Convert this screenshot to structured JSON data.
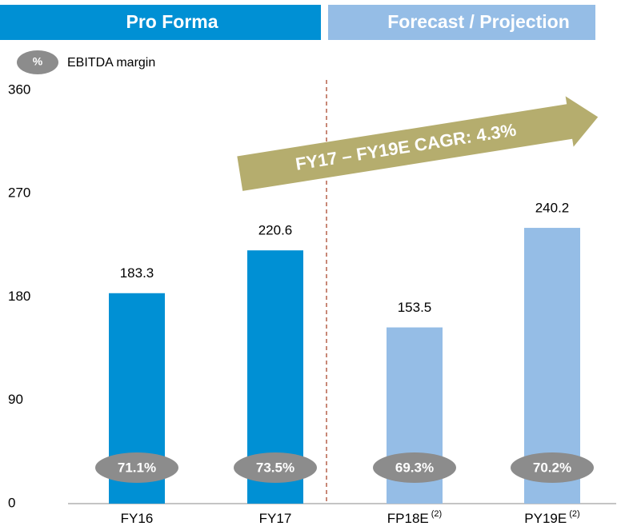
{
  "chart_data": {
    "type": "bar",
    "headers": [
      {
        "text": "Pro Forma",
        "color": "#0090d4"
      },
      {
        "text": "Forecast / Projection",
        "color": "#95bde6"
      }
    ],
    "legend": {
      "symbol": "%",
      "text": "EBITDA margin"
    },
    "annotation": "FY17 – FY19E CAGR: 4.3%",
    "categories": [
      "FY16",
      "FY17",
      "FP18E",
      "PY19E"
    ],
    "category_notes": [
      null,
      null,
      "(2)",
      "(2)"
    ],
    "values": [
      183.3,
      220.6,
      153.5,
      240.2
    ],
    "colors": [
      "#0090d4",
      "#0090d4",
      "#95bde6",
      "#95bde6"
    ],
    "margins": [
      71.1,
      73.5,
      69.3,
      70.2
    ],
    "margin_labels": [
      "71.1%",
      "73.5%",
      "69.3%",
      "70.2%"
    ],
    "ylim": [
      0,
      360
    ],
    "yticks": [
      0,
      90,
      180,
      270,
      360
    ],
    "grid": false
  }
}
